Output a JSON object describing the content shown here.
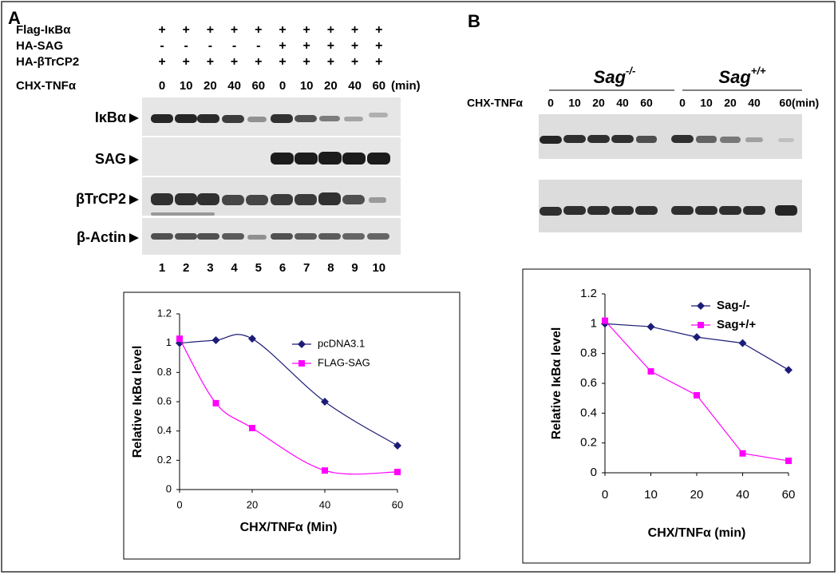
{
  "panel_a": {
    "label": "A",
    "rows": [
      {
        "name": "Flag-IκBα",
        "marks": [
          "+",
          "+",
          "+",
          "+",
          "+",
          "+",
          "+",
          "+",
          "+",
          "+"
        ]
      },
      {
        "name": "HA-SAG",
        "marks": [
          "-",
          "-",
          "-",
          "-",
          "-",
          "+",
          "+",
          "+",
          "+",
          "+"
        ]
      },
      {
        "name": "HA-βTrCP2",
        "marks": [
          "+",
          "+",
          "+",
          "+",
          "+",
          "+",
          "+",
          "+",
          "+",
          "+"
        ]
      }
    ],
    "time_label": "CHX-TNFα",
    "times": [
      "0",
      "10",
      "20",
      "40",
      "60",
      "0",
      "10",
      "20",
      "40",
      "60"
    ],
    "time_unit": "(min)",
    "blots": [
      "IκBα",
      "SAG",
      "βTrCP2",
      "β-Actin"
    ],
    "lanes": [
      "1",
      "2",
      "3",
      "4",
      "5",
      "6",
      "7",
      "8",
      "9",
      "10"
    ]
  },
  "panel_b": {
    "label": "B",
    "groups": [
      {
        "name": "Sag",
        "sup": "-/-"
      },
      {
        "name": "Sag",
        "sup": "+/+"
      }
    ],
    "time_label": "CHX-TNFα",
    "times": [
      "0",
      "10",
      "20",
      "40",
      "60",
      "0",
      "10",
      "20",
      "40",
      "60"
    ],
    "time_unit": "(min)"
  },
  "chart_data": [
    {
      "type": "line",
      "xlabel": "CHX/TNFα (Min)",
      "ylabel": "Relative IκBα level",
      "x": [
        0,
        10,
        20,
        40,
        60
      ],
      "xlim": [
        0,
        60
      ],
      "xticks": [
        0,
        20,
        40,
        60
      ],
      "ylim": [
        0,
        1.2
      ],
      "yticks": [
        0,
        0.2,
        0.4,
        0.6,
        0.8,
        1,
        1.2
      ],
      "smooth": true,
      "grid": false,
      "legend": "upper right",
      "series": [
        {
          "name": "pcDNA3.1",
          "color": "#1c1c78",
          "marker": "diamond",
          "values": [
            1.0,
            1.02,
            1.03,
            0.6,
            0.3
          ]
        },
        {
          "name": "FLAG-SAG",
          "color": "#ff00ff",
          "marker": "square",
          "values": [
            1.03,
            0.59,
            0.42,
            0.13,
            0.12
          ]
        }
      ]
    },
    {
      "type": "line",
      "xlabel": "CHX/TNFα (min)",
      "ylabel": "Relative IκBα level",
      "categories": [
        "0",
        "10",
        "20",
        "40",
        "60"
      ],
      "ylim": [
        0,
        1.2
      ],
      "yticks": [
        0,
        0.2,
        0.4,
        0.6,
        0.8,
        1,
        1.2
      ],
      "smooth": false,
      "grid": false,
      "legend": "upper right",
      "series": [
        {
          "name": "Sag-/-",
          "color": "#1c1c78",
          "marker": "diamond",
          "values": [
            1.0,
            0.98,
            0.91,
            0.87,
            0.69
          ]
        },
        {
          "name": "Sag+/+",
          "color": "#ff00ff",
          "marker": "square",
          "values": [
            1.02,
            0.68,
            0.52,
            0.13,
            0.08
          ]
        }
      ]
    }
  ]
}
